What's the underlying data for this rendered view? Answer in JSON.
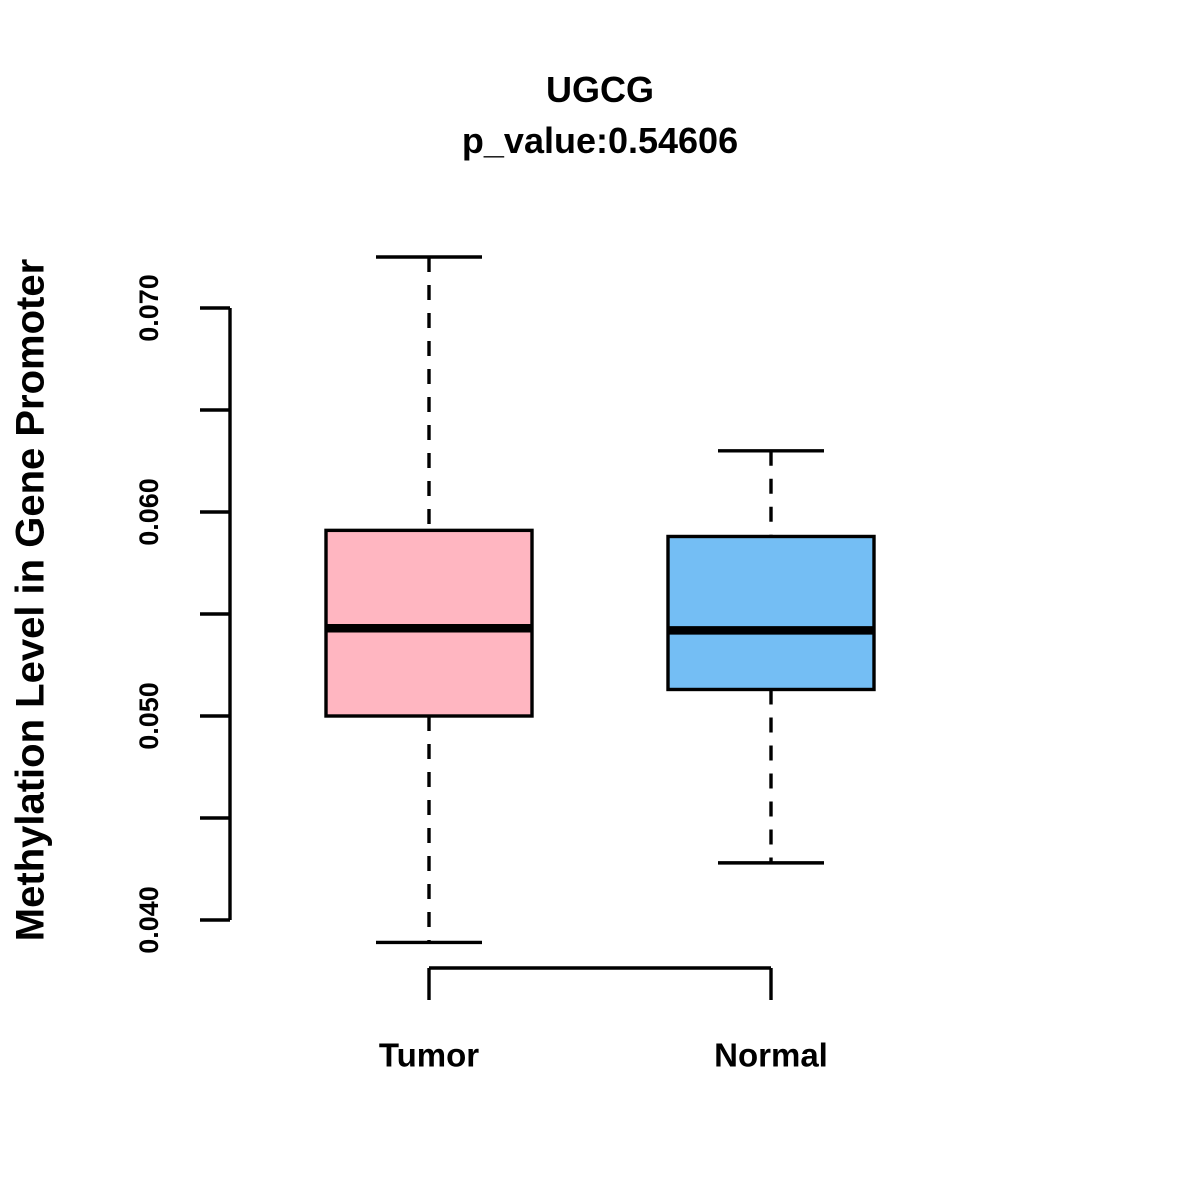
{
  "figure": {
    "title": "UGCG",
    "subtitle": "p_value:0.54606",
    "ylabel": "Methylation Level in Gene Promoter",
    "background": "#FFFFFF",
    "text_color": "#000000",
    "axis_color": "#000000"
  },
  "chart_data": {
    "type": "boxplot",
    "title": "UGCG",
    "subtitle": "p_value:0.54606",
    "xlabel": "",
    "ylabel": "Methylation Level in Gene Promoter",
    "categories": [
      "Tumor",
      "Normal"
    ],
    "series": [
      {
        "name": "Tumor",
        "box_color": "#FFB6C1",
        "border_color": "#000000",
        "whisker_low": 0.0389,
        "q1": 0.05,
        "median": 0.0543,
        "q3": 0.0591,
        "whisker_high": 0.0725
      },
      {
        "name": "Normal",
        "box_color": "#74BEF4",
        "border_color": "#000000",
        "whisker_low": 0.0428,
        "q1": 0.0513,
        "median": 0.0542,
        "q3": 0.0588,
        "whisker_high": 0.063
      }
    ],
    "y_axis": {
      "ticks": [
        0.04,
        0.045,
        0.05,
        0.055,
        0.06,
        0.065,
        0.07
      ],
      "labeled_ticks": [
        {
          "value": 0.04,
          "label": "0.040"
        },
        {
          "value": 0.05,
          "label": "0.050"
        },
        {
          "value": 0.06,
          "label": "0.060"
        },
        {
          "value": 0.07,
          "label": "0.070"
        }
      ],
      "axis_span": [
        0.04,
        0.07
      ],
      "label_rotation_deg": 90
    },
    "whisker_style": "dashed",
    "grid": false,
    "legend": false
  }
}
